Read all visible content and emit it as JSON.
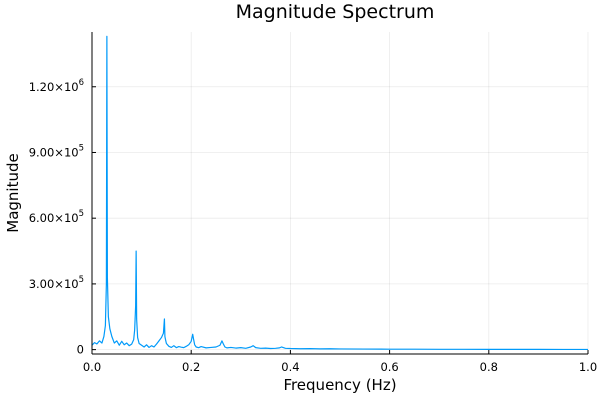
{
  "chart_data": {
    "type": "line",
    "title": "Magnitude Spectrum",
    "xlabel": "Frequency (Hz)",
    "ylabel": "Magnitude",
    "xlim": [
      0.0,
      1.0
    ],
    "ylim": [
      -20000,
      1450000
    ],
    "x_ticks": [
      0.0,
      0.2,
      0.4,
      0.6,
      0.8,
      1.0
    ],
    "x_tick_labels": [
      "0.0",
      "0.2",
      "0.4",
      "0.6",
      "0.8",
      "1.0"
    ],
    "y_ticks": [
      0,
      300000,
      600000,
      900000,
      1200000
    ],
    "y_tick_labels": [
      {
        "mantissa": "0",
        "exp": ""
      },
      {
        "mantissa": "3.00×10",
        "exp": "5"
      },
      {
        "mantissa": "6.00×10",
        "exp": "5"
      },
      {
        "mantissa": "9.00×10",
        "exp": "5"
      },
      {
        "mantissa": "1.20×10",
        "exp": "6"
      }
    ],
    "grid": true,
    "legend": "none",
    "series": [
      {
        "color": "#009AFA",
        "x": [
          0.0,
          0.005,
          0.01,
          0.015,
          0.02,
          0.024,
          0.027,
          0.029,
          0.03,
          0.031,
          0.033,
          0.036,
          0.04,
          0.045,
          0.05,
          0.055,
          0.06,
          0.065,
          0.07,
          0.075,
          0.08,
          0.084,
          0.086,
          0.088,
          0.089,
          0.09,
          0.092,
          0.095,
          0.1,
          0.105,
          0.11,
          0.115,
          0.12,
          0.125,
          0.13,
          0.135,
          0.14,
          0.144,
          0.146,
          0.147,
          0.148,
          0.15,
          0.155,
          0.16,
          0.165,
          0.17,
          0.175,
          0.18,
          0.185,
          0.19,
          0.195,
          0.2,
          0.203,
          0.205,
          0.207,
          0.21,
          0.215,
          0.22,
          0.23,
          0.24,
          0.25,
          0.258,
          0.262,
          0.265,
          0.268,
          0.272,
          0.28,
          0.29,
          0.3,
          0.31,
          0.32,
          0.325,
          0.33,
          0.34,
          0.35,
          0.36,
          0.37,
          0.378,
          0.382,
          0.39,
          0.4,
          0.42,
          0.44,
          0.46,
          0.48,
          0.5,
          0.55,
          0.6,
          0.65,
          0.7,
          0.75,
          0.8,
          0.85,
          0.9,
          0.95,
          1.0
        ],
        "y": [
          20000,
          32000,
          26000,
          40000,
          30000,
          60000,
          110000,
          300000,
          1430000,
          330000,
          150000,
          95000,
          60000,
          30000,
          40000,
          20000,
          38000,
          22000,
          30000,
          18000,
          25000,
          45000,
          90000,
          200000,
          450000,
          140000,
          55000,
          28000,
          20000,
          12000,
          22000,
          10000,
          18000,
          12000,
          25000,
          40000,
          55000,
          75000,
          140000,
          60000,
          48000,
          28000,
          15000,
          10000,
          18000,
          9000,
          14000,
          11000,
          9000,
          15000,
          22000,
          38000,
          70000,
          45000,
          22000,
          12000,
          9000,
          14000,
          8000,
          10000,
          12000,
          20000,
          40000,
          25000,
          12000,
          8000,
          10000,
          7000,
          9000,
          6000,
          12000,
          18000,
          9000,
          6000,
          7000,
          5000,
          6000,
          8000,
          12000,
          6000,
          5000,
          4000,
          4500,
          3500,
          4000,
          3000,
          2500,
          2000,
          2000,
          1500,
          1500,
          1200,
          1000,
          1000,
          800,
          800
        ]
      }
    ]
  }
}
